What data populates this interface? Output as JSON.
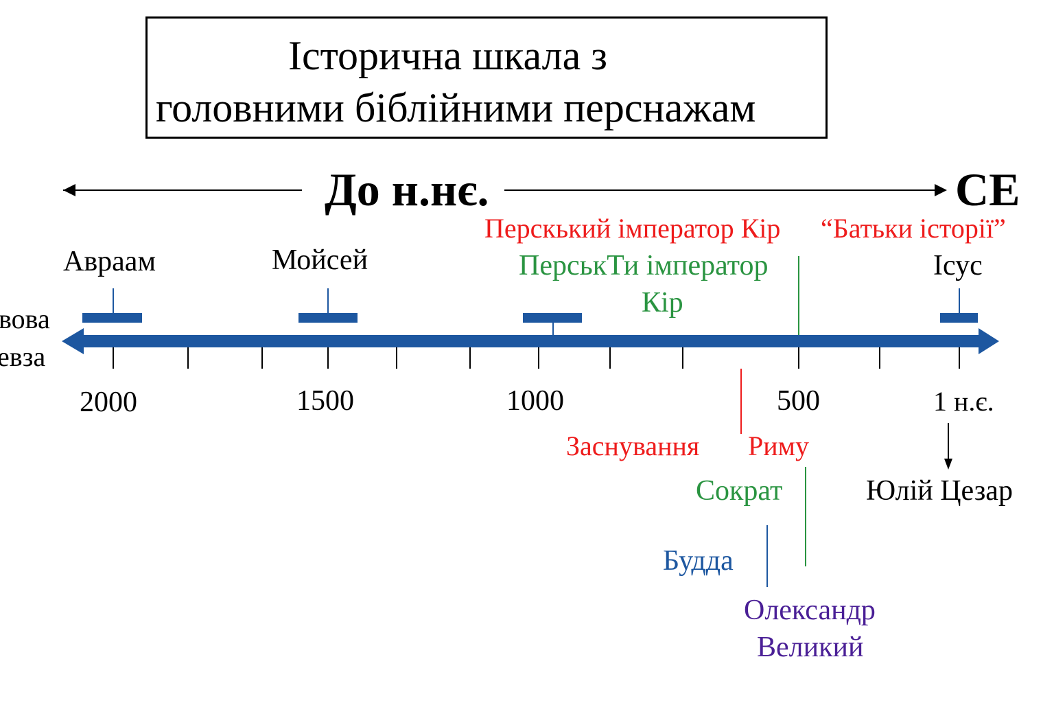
{
  "title": {
    "line1": "Історична шкала з",
    "line2": "головними біблійними перснажам"
  },
  "era": {
    "bce": "До н.нє.",
    "ce": "CE"
  },
  "axis_labels": {
    "y2000": "2000",
    "y1500": "1500",
    "y1000": "1000",
    "y500": "500",
    "y1": "1 н.є."
  },
  "left_edge": {
    "line1": "вова",
    "line2": "евза"
  },
  "events": {
    "abraham": "Авраам",
    "moses": "Мойсей",
    "jesus": "Ісус",
    "persian_red": "Перскький імператор Кір",
    "fathers_history": "“Батьки історії”",
    "persian_green_1": "ПерськТи імператор",
    "persian_green_2": "Кір",
    "rome_1": "Заснування",
    "rome_2": "Риму",
    "socrates": "Сократ",
    "buddha": "Будда",
    "alexander_1": "Олександр",
    "alexander_2": "Великий",
    "caesar": "Юлій Цезар"
  },
  "colors": {
    "axis": "#1d57a0",
    "red": "#ee1c1c",
    "green": "#2a9441",
    "blue": "#1d57a0",
    "purple": "#4a1f96",
    "black": "#000000"
  }
}
